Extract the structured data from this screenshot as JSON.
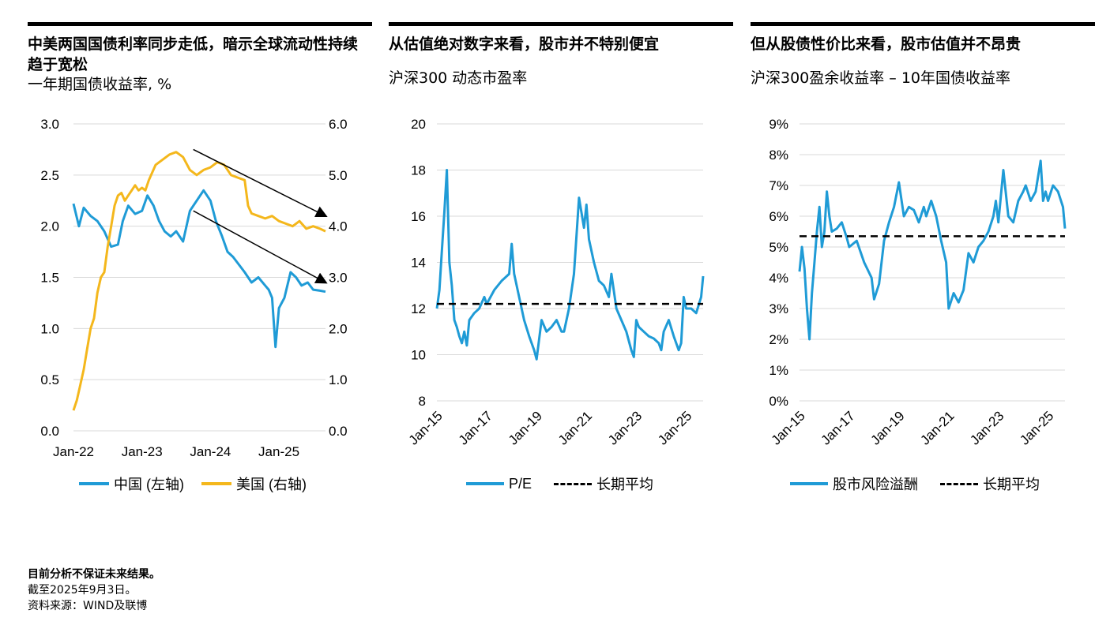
{
  "colors": {
    "china": "#1f9bd6",
    "us": "#f4b71c",
    "avg": "#000000",
    "grid": "#d9d9d9"
  },
  "footer": {
    "note1": "目前分析不保证未来结果。",
    "note2": "截至2025年9月3日。",
    "note3": "资料来源：WIND及联博"
  },
  "chart_data": [
    {
      "type": "line",
      "title": "中美两国国债利率同步走低，暗示全球流动性持续趋于宽松",
      "subtitle": "一年期国债收益率, %",
      "x_tick_labels": [
        "Jan-22",
        "Jan-23",
        "Jan-24",
        "Jan-25"
      ],
      "x_range": [
        2022.0,
        2025.68
      ],
      "ylim_left": [
        0,
        3
      ],
      "ylim_right": [
        0,
        6
      ],
      "y_ticks_left": [
        "0.0",
        "0.5",
        "1.0",
        "1.5",
        "2.0",
        "2.5",
        "3.0"
      ],
      "y_ticks_right": [
        "0.0",
        "1.0",
        "2.0",
        "3.0",
        "4.0",
        "5.0",
        "6.0"
      ],
      "grid": true,
      "legend": "bottom",
      "series": [
        {
          "name": "中国 (左轴)",
          "axis": "left",
          "x": [
            2022.0,
            2022.08,
            2022.15,
            2022.25,
            2022.35,
            2022.45,
            2022.55,
            2022.65,
            2022.72,
            2022.8,
            2022.9,
            2023.0,
            2023.08,
            2023.17,
            2023.25,
            2023.33,
            2023.42,
            2023.5,
            2023.6,
            2023.7,
            2023.8,
            2023.9,
            2024.0,
            2024.08,
            2024.17,
            2024.25,
            2024.33,
            2024.42,
            2024.5,
            2024.6,
            2024.7,
            2024.8,
            2024.85,
            2024.9,
            2024.95,
            2025.0,
            2025.08,
            2025.17,
            2025.25,
            2025.33,
            2025.42,
            2025.5,
            2025.6,
            2025.68
          ],
          "y": [
            2.22,
            2.0,
            2.18,
            2.1,
            2.05,
            1.95,
            1.8,
            1.82,
            2.05,
            2.2,
            2.12,
            2.15,
            2.3,
            2.2,
            2.05,
            1.95,
            1.9,
            1.95,
            1.85,
            2.15,
            2.25,
            2.35,
            2.25,
            2.05,
            1.9,
            1.75,
            1.7,
            1.62,
            1.55,
            1.45,
            1.5,
            1.42,
            1.38,
            1.3,
            0.82,
            1.2,
            1.3,
            1.55,
            1.5,
            1.42,
            1.45,
            1.38,
            1.37,
            1.36
          ]
        },
        {
          "name": "美国 (右轴)",
          "axis": "right",
          "x": [
            2022.0,
            2022.05,
            2022.1,
            2022.15,
            2022.2,
            2022.25,
            2022.3,
            2022.35,
            2022.4,
            2022.45,
            2022.5,
            2022.55,
            2022.6,
            2022.65,
            2022.7,
            2022.75,
            2022.8,
            2022.85,
            2022.9,
            2022.95,
            2023.0,
            2023.05,
            2023.1,
            2023.2,
            2023.3,
            2023.4,
            2023.5,
            2023.6,
            2023.7,
            2023.8,
            2023.9,
            2024.0,
            2024.1,
            2024.2,
            2024.3,
            2024.4,
            2024.5,
            2024.55,
            2024.6,
            2024.7,
            2024.8,
            2024.9,
            2025.0,
            2025.1,
            2025.2,
            2025.3,
            2025.4,
            2025.5,
            2025.6,
            2025.68
          ],
          "y": [
            0.4,
            0.6,
            0.9,
            1.2,
            1.6,
            2.0,
            2.2,
            2.7,
            3.0,
            3.1,
            3.6,
            4.0,
            4.4,
            4.6,
            4.65,
            4.5,
            4.6,
            4.7,
            4.8,
            4.7,
            4.75,
            4.7,
            4.9,
            5.2,
            5.3,
            5.4,
            5.45,
            5.35,
            5.1,
            5.0,
            5.1,
            5.15,
            5.25,
            5.2,
            5.0,
            4.95,
            4.9,
            4.4,
            4.25,
            4.2,
            4.15,
            4.2,
            4.1,
            4.05,
            4.0,
            4.1,
            3.95,
            4.0,
            3.95,
            3.9
          ]
        }
      ],
      "annotations": [
        {
          "type": "arrow",
          "from": [
            2023.75,
            5.5
          ],
          "to": [
            2025.68,
            4.2
          ],
          "axis": "right"
        },
        {
          "type": "arrow",
          "from": [
            2023.75,
            2.15
          ],
          "to": [
            2025.68,
            1.45
          ],
          "axis": "left"
        }
      ]
    },
    {
      "type": "line",
      "title": "从估值绝对数字来看，股市并不特别便宜",
      "subtitle": "沪深300 动态市盈率",
      "x_tick_labels": [
        "Jan-15",
        "Jan-17",
        "Jan-19",
        "Jan-21",
        "Jan-23",
        "Jan-25"
      ],
      "x_range": [
        2015.0,
        2025.68
      ],
      "ylim": [
        8,
        20
      ],
      "y_ticks": [
        "8",
        "10",
        "12",
        "14",
        "16",
        "18",
        "20"
      ],
      "grid": true,
      "legend": "bottom",
      "series": [
        {
          "name": "P/E",
          "x": [
            2015.0,
            2015.1,
            2015.2,
            2015.3,
            2015.4,
            2015.5,
            2015.6,
            2015.7,
            2015.8,
            2015.9,
            2016.0,
            2016.1,
            2016.2,
            2016.3,
            2016.5,
            2016.7,
            2016.9,
            2017.0,
            2017.3,
            2017.6,
            2017.9,
            2018.0,
            2018.1,
            2018.3,
            2018.5,
            2018.7,
            2018.9,
            2019.0,
            2019.2,
            2019.4,
            2019.6,
            2019.8,
            2020.0,
            2020.1,
            2020.3,
            2020.5,
            2020.7,
            2020.9,
            2021.0,
            2021.1,
            2021.3,
            2021.5,
            2021.7,
            2021.9,
            2022.0,
            2022.2,
            2022.4,
            2022.6,
            2022.8,
            2022.9,
            2023.0,
            2023.1,
            2023.3,
            2023.5,
            2023.7,
            2023.9,
            2024.0,
            2024.1,
            2024.3,
            2024.5,
            2024.7,
            2024.8,
            2024.9,
            2025.0,
            2025.2,
            2025.4,
            2025.6,
            2025.68
          ],
          "y": [
            12.0,
            12.8,
            14.5,
            16.2,
            18.0,
            14.0,
            13.0,
            11.5,
            11.2,
            10.8,
            10.5,
            11.0,
            10.4,
            11.5,
            11.8,
            12.0,
            12.5,
            12.2,
            12.8,
            13.2,
            13.5,
            14.8,
            13.5,
            12.5,
            11.5,
            10.8,
            10.2,
            9.8,
            11.5,
            11.0,
            11.2,
            11.5,
            11.0,
            11.0,
            12.0,
            13.5,
            16.8,
            15.5,
            16.5,
            15.0,
            14.0,
            13.2,
            13.0,
            12.5,
            13.5,
            12.0,
            11.5,
            11.0,
            10.2,
            9.9,
            11.5,
            11.2,
            11.0,
            10.8,
            10.7,
            10.5,
            10.2,
            11.0,
            11.5,
            10.8,
            10.2,
            10.5,
            12.5,
            12.0,
            12.0,
            11.8,
            12.5,
            13.4
          ]
        },
        {
          "name": "长期平均",
          "constant": 12.2,
          "dashed": true
        }
      ]
    },
    {
      "type": "line",
      "title": "但从股债性价比来看，股市估值并不昂贵",
      "subtitle": "沪深300盈余收益率 – 10年国债收益率",
      "x_tick_labels": [
        "Jan-15",
        "Jan-17",
        "Jan-19",
        "Jan-21",
        "Jan-23",
        "Jan-25"
      ],
      "x_range": [
        2015.0,
        2025.68
      ],
      "ylim": [
        0,
        9
      ],
      "y_ticks": [
        "0%",
        "1%",
        "2%",
        "3%",
        "4%",
        "5%",
        "6%",
        "7%",
        "8%",
        "9%"
      ],
      "grid": true,
      "legend": "bottom",
      "series": [
        {
          "name": "股市风险溢酬",
          "x": [
            2015.0,
            2015.1,
            2015.2,
            2015.3,
            2015.4,
            2015.5,
            2015.6,
            2015.7,
            2015.8,
            2015.9,
            2016.0,
            2016.1,
            2016.2,
            2016.3,
            2016.5,
            2016.7,
            2016.9,
            2017.0,
            2017.3,
            2017.6,
            2017.9,
            2018.0,
            2018.2,
            2018.4,
            2018.6,
            2018.8,
            2019.0,
            2019.2,
            2019.4,
            2019.6,
            2019.8,
            2020.0,
            2020.1,
            2020.3,
            2020.5,
            2020.7,
            2020.9,
            2021.0,
            2021.2,
            2021.4,
            2021.6,
            2021.8,
            2022.0,
            2022.2,
            2022.4,
            2022.6,
            2022.8,
            2022.9,
            2023.0,
            2023.2,
            2023.4,
            2023.6,
            2023.8,
            2024.0,
            2024.1,
            2024.3,
            2024.5,
            2024.7,
            2024.8,
            2024.9,
            2025.0,
            2025.2,
            2025.4,
            2025.6,
            2025.68
          ],
          "y": [
            4.2,
            5.0,
            4.3,
            3.0,
            2.0,
            3.5,
            4.5,
            5.5,
            6.3,
            5.0,
            5.5,
            6.8,
            6.0,
            5.5,
            5.6,
            5.8,
            5.3,
            5.0,
            5.2,
            4.5,
            4.0,
            3.3,
            3.8,
            5.2,
            5.8,
            6.3,
            7.1,
            6.0,
            6.3,
            6.2,
            5.8,
            6.3,
            6.0,
            6.5,
            6.0,
            5.2,
            4.5,
            3.0,
            3.5,
            3.2,
            3.6,
            4.8,
            4.5,
            5.0,
            5.2,
            5.5,
            6.0,
            6.5,
            5.8,
            7.5,
            6.0,
            5.8,
            6.5,
            6.8,
            7.0,
            6.5,
            6.8,
            7.8,
            6.5,
            6.8,
            6.5,
            7.0,
            6.8,
            6.3,
            5.6
          ]
        },
        {
          "name": "长期平均",
          "constant": 5.35,
          "dashed": true
        }
      ]
    }
  ]
}
